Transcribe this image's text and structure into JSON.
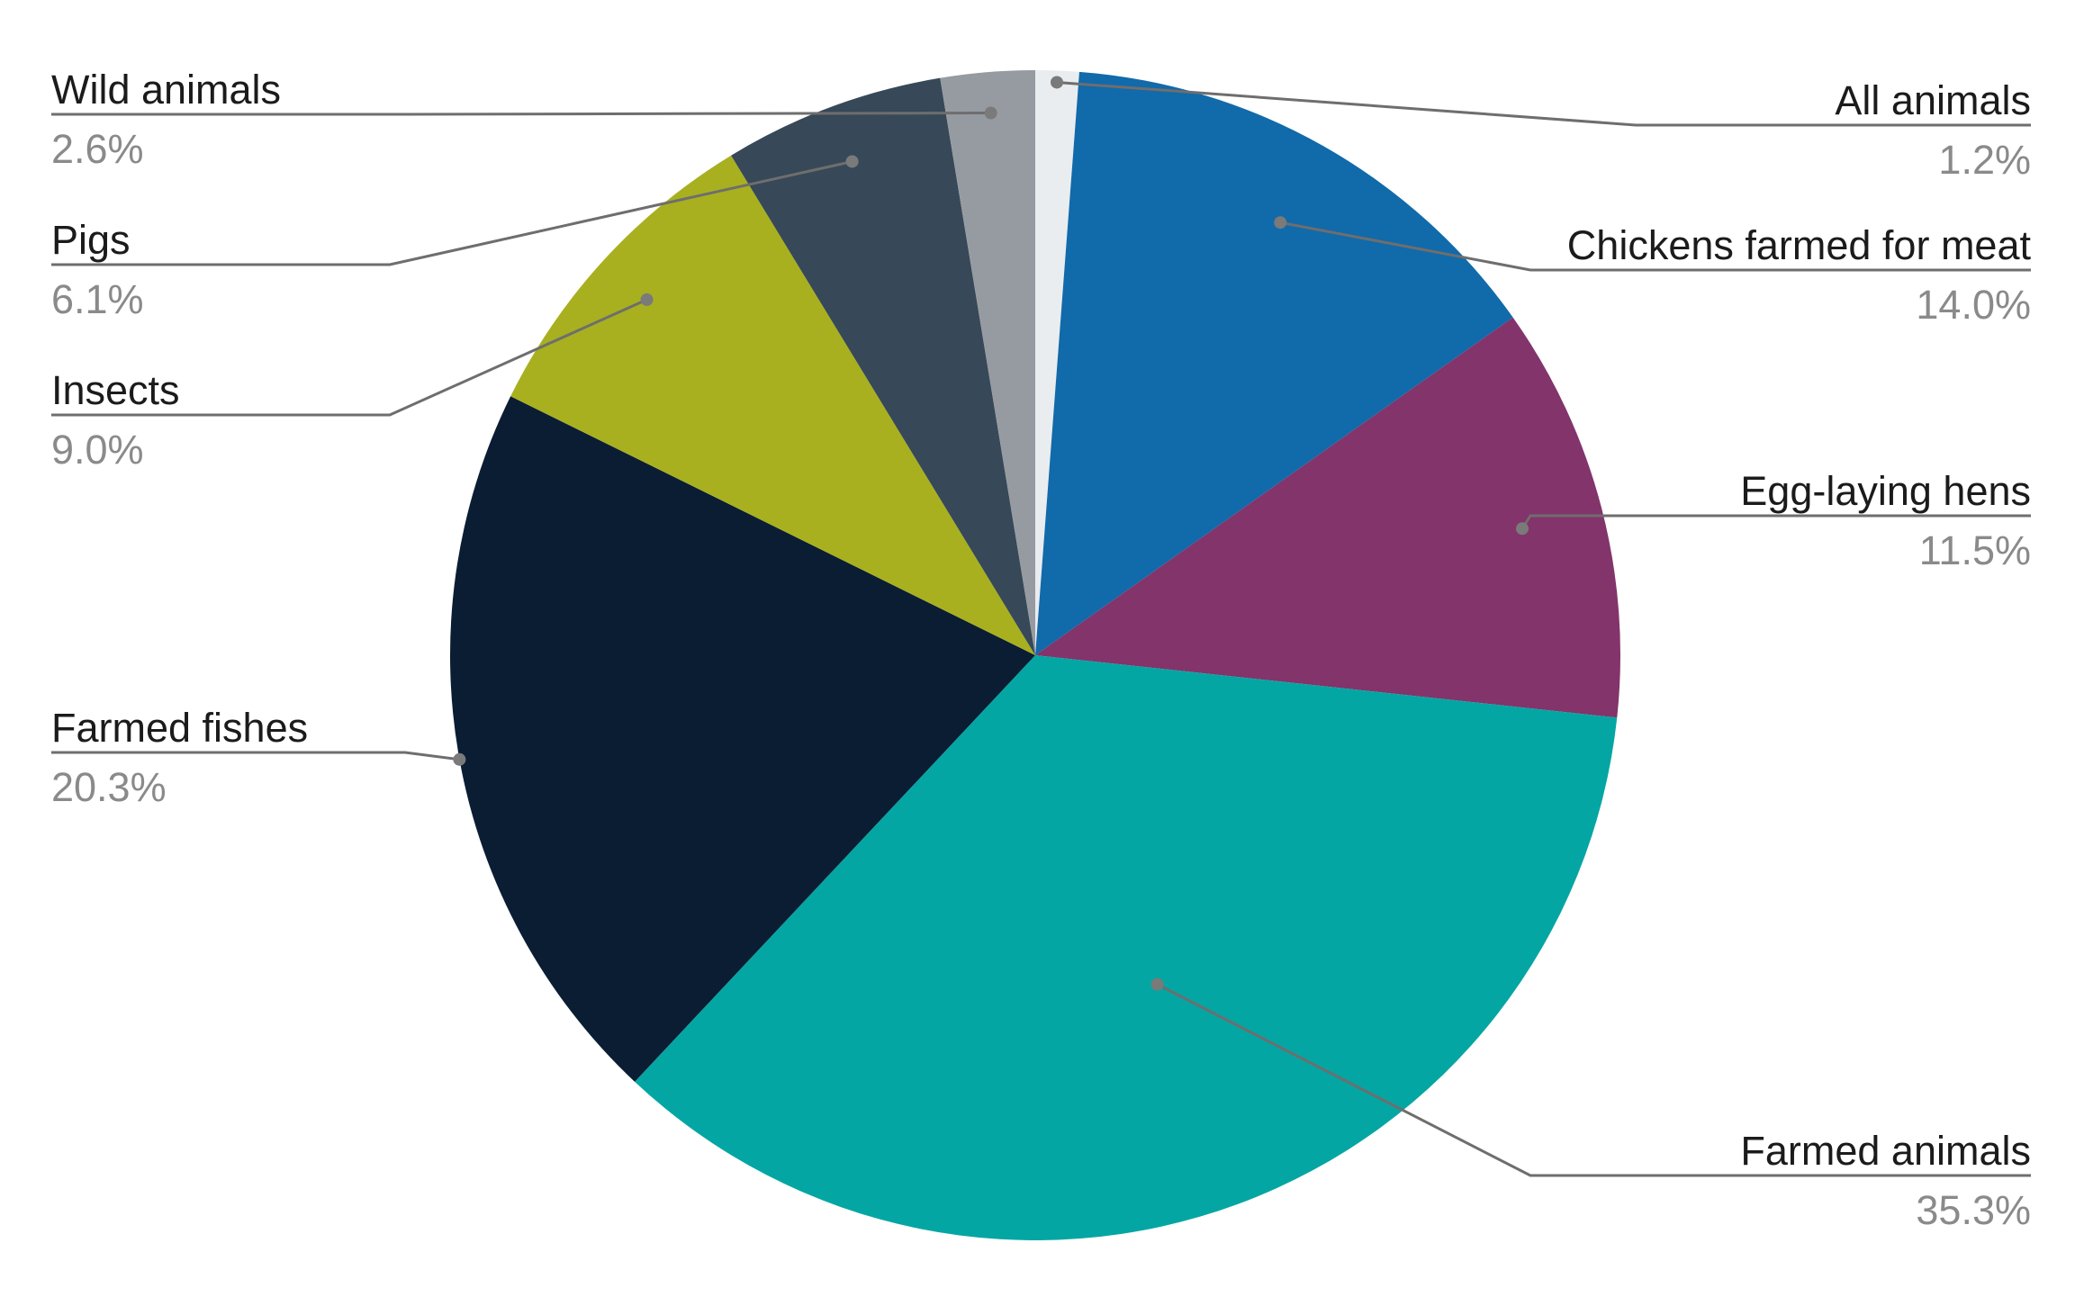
{
  "chart_data": {
    "type": "pie",
    "slices": [
      {
        "label": "All animals",
        "value": 1.2,
        "value_label": "1.2%",
        "color": "#e9edf0"
      },
      {
        "label": "Chickens farmed for meat",
        "value": 14.0,
        "value_label": "14.0%",
        "color": "#116aaa"
      },
      {
        "label": "Egg-laying hens",
        "value": 11.5,
        "value_label": "11.5%",
        "color": "#82346b"
      },
      {
        "label": "Farmed animals",
        "value": 35.3,
        "value_label": "35.3%",
        "color": "#04a6a3"
      },
      {
        "label": "Farmed fishes",
        "value": 20.3,
        "value_label": "20.3%",
        "color": "#0a1d33"
      },
      {
        "label": "Insects",
        "value": 9.0,
        "value_label": "9.0%",
        "color": "#a8b01f"
      },
      {
        "label": "Pigs",
        "value": 6.1,
        "value_label": "6.1%",
        "color": "#374858"
      },
      {
        "label": "Wild animals",
        "value": 2.6,
        "value_label": "2.6%",
        "color": "#969ba2"
      }
    ],
    "start_angle": "12 o'clock",
    "direction": "clockwise",
    "legend": "none (direct labels with leader lines)"
  }
}
